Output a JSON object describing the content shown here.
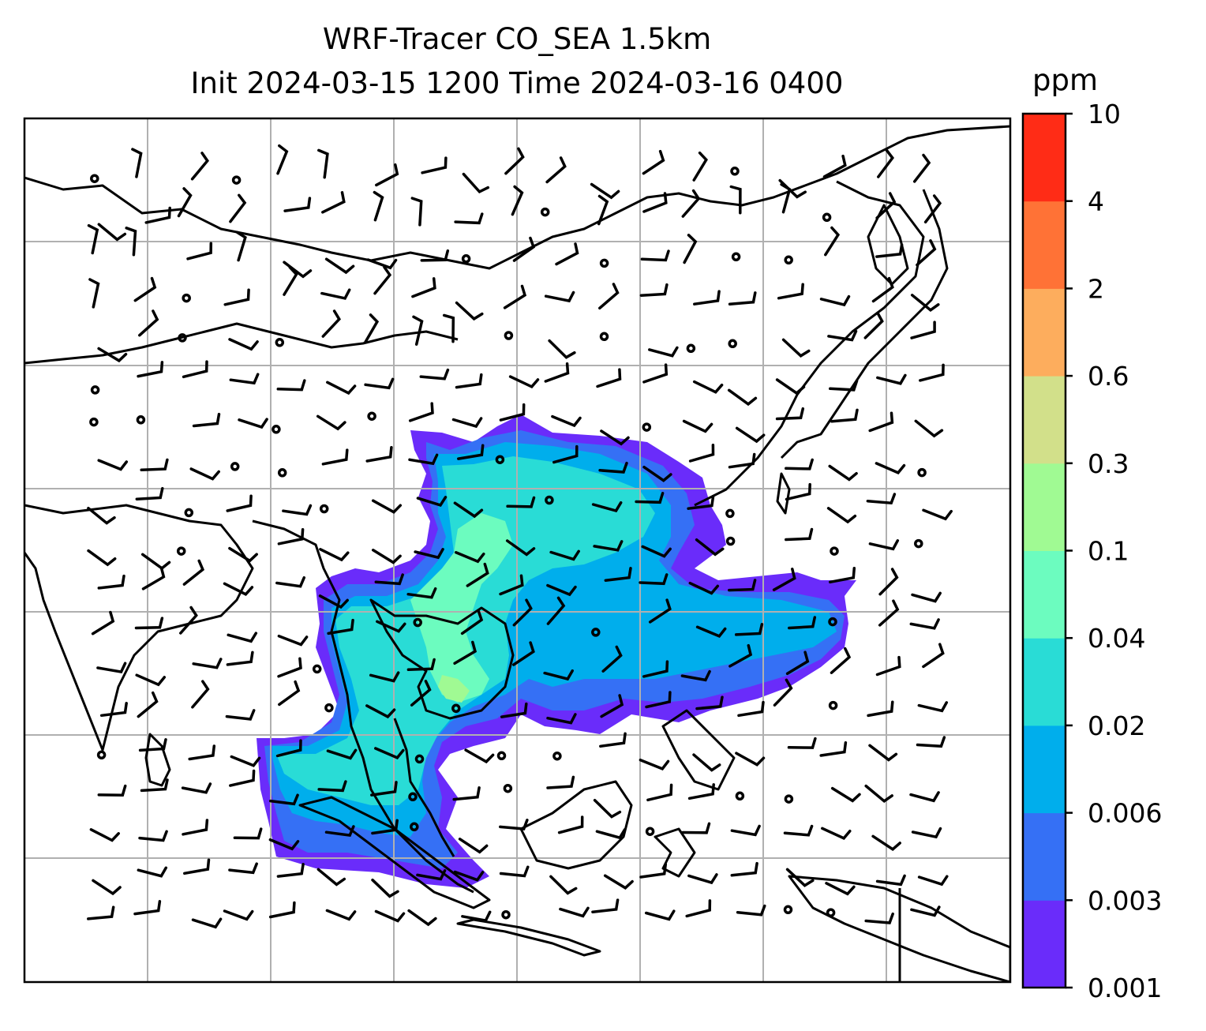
{
  "title": {
    "line1": "WRF-Tracer CO_SEA 1.5km",
    "line2": "Init 2024-03-15 1200 Time 2024-03-16 0400"
  },
  "colorbar": {
    "unit": "ppm",
    "levels": [
      "0.001",
      "0.003",
      "0.006",
      "0.02",
      "0.04",
      "0.1",
      "0.3",
      "0.6",
      "2",
      "4",
      "10"
    ],
    "colors": [
      "#6a2cfa",
      "#3570f5",
      "#00aeec",
      "#29dcd6",
      "#6cfcbf",
      "#a0fa93",
      "#d2e08a",
      "#fdad5d",
      "#ff7236",
      "#ff2c16"
    ]
  },
  "map": {
    "gridlines": true,
    "gridline_color": "#b0b0b0",
    "coastline_color": "#000000",
    "overlay": "wind barbs and calm-wind circles"
  }
}
